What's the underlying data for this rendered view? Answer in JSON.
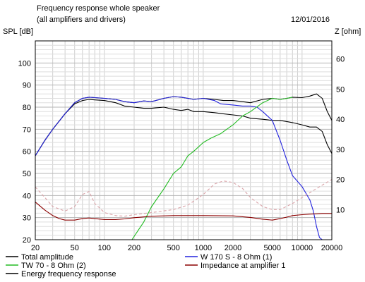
{
  "header": {
    "title": "Frequency response whole speaker",
    "subtitle": "(all amplifiers and drivers)",
    "date": "12/01/2016"
  },
  "chart_data": {
    "type": "line",
    "title": "Frequency response whole speaker",
    "subtitle": "(all amplifiers and drivers)",
    "ylabel_left": "SPL [dB]",
    "ylabel_right": "Z [ohm]",
    "x_scale": "log",
    "xlim": [
      20,
      20000
    ],
    "ylim_left": [
      20,
      110
    ],
    "ylim_right": [
      0,
      66
    ],
    "grid": true,
    "legend_position": "bottom",
    "x_ticks": [
      20,
      50,
      100,
      200,
      500,
      1000,
      2000,
      5000,
      10000,
      20000
    ],
    "x_tick_labels": [
      "20",
      "50",
      "100",
      "200",
      "500",
      "1000",
      "2000",
      "5000",
      "10000",
      "20000"
    ],
    "y_ticks_left": [
      20,
      30,
      40,
      50,
      60,
      70,
      80,
      90,
      100
    ],
    "y_tick_labels_left": [
      "20",
      "30",
      "40",
      "50",
      "60",
      "70",
      "80",
      "90",
      "100"
    ],
    "y_ticks_right": [
      10,
      20,
      30,
      40,
      50,
      60
    ],
    "y_tick_labels_right": [
      "10",
      "20",
      "30",
      "40",
      "50",
      "60"
    ],
    "series": [
      {
        "name": "Total amplitude",
        "axis": "left",
        "color": "#000000",
        "dash": "",
        "x": [
          20,
          25,
          30,
          40,
          50,
          60,
          70,
          80,
          100,
          130,
          160,
          200,
          250,
          300,
          400,
          500,
          600,
          700,
          800,
          1000,
          1300,
          1600,
          2000,
          2500,
          3000,
          4000,
          5000,
          6000,
          7000,
          8000,
          10000,
          12000,
          14000,
          16000,
          18000,
          20000
        ],
        "y": [
          58,
          65,
          70,
          77,
          82,
          84,
          84.5,
          84.3,
          84,
          83.5,
          82.5,
          82,
          82.8,
          82.5,
          84,
          84.8,
          84.5,
          84,
          83.5,
          84,
          83.5,
          83,
          83,
          82.5,
          82,
          83.5,
          84,
          83.5,
          84,
          84.5,
          84.3,
          85,
          86,
          84,
          78,
          74
        ]
      },
      {
        "name": "Energy frequency response",
        "axis": "left",
        "color": "#000000",
        "dash": "",
        "x": [
          20,
          25,
          30,
          40,
          50,
          60,
          70,
          80,
          100,
          130,
          160,
          200,
          250,
          300,
          400,
          500,
          600,
          700,
          800,
          1000,
          1300,
          1600,
          2000,
          2500,
          3000,
          4000,
          5000,
          6000,
          7000,
          8000,
          10000,
          12000,
          14000,
          16000,
          18000,
          20000
        ],
        "y": [
          58,
          65,
          70,
          77,
          81.5,
          83,
          83.5,
          83.3,
          83,
          82,
          80.5,
          80,
          79.5,
          79.5,
          80,
          79,
          78.5,
          79,
          78,
          78,
          77.5,
          77,
          76.5,
          76,
          75,
          74.5,
          74,
          74,
          73.5,
          73,
          72,
          71,
          71,
          69,
          63,
          59
        ]
      },
      {
        "name": "W 170 S - 8 Ohm (1)",
        "axis": "left",
        "color": "#2222dd",
        "dash": "",
        "x": [
          20,
          25,
          30,
          40,
          50,
          60,
          70,
          80,
          100,
          130,
          160,
          200,
          250,
          300,
          400,
          500,
          600,
          700,
          800,
          1000,
          1300,
          1500,
          2000,
          2500,
          3000,
          3500,
          4000,
          5000,
          6000,
          7000,
          8000,
          10000,
          12000,
          13000,
          14000,
          15000,
          16000
        ],
        "y": [
          58,
          65,
          70,
          77,
          82,
          84,
          84.5,
          84.3,
          84,
          83.5,
          82.5,
          82,
          82.8,
          82.5,
          84,
          84.8,
          84.5,
          84,
          83.5,
          84,
          83,
          81.5,
          81,
          80.5,
          80.5,
          80,
          78,
          74,
          65,
          56,
          49,
          44,
          38,
          33,
          26,
          21,
          20
        ]
      },
      {
        "name": "TW 70 - 8 Ohm (2)",
        "axis": "left",
        "color": "#22bb22",
        "dash": "",
        "x": [
          190,
          200,
          250,
          300,
          400,
          500,
          600,
          700,
          800,
          1000,
          1200,
          1500,
          2000,
          2500,
          3000,
          4000,
          5000,
          6000,
          7000,
          8000
        ],
        "y": [
          20,
          21.5,
          28,
          35,
          43,
          50,
          53,
          58,
          60,
          64,
          66,
          68,
          72,
          76,
          78,
          82,
          84,
          83.5,
          84,
          84.5
        ]
      },
      {
        "name": "Impedance at amplifier 1",
        "axis": "right",
        "color": "#8b0000",
        "dash": "",
        "x": [
          20,
          25,
          30,
          35,
          40,
          50,
          60,
          70,
          80,
          100,
          130,
          160,
          200,
          300,
          500,
          1000,
          2000,
          3000,
          4000,
          5000,
          6000,
          7000,
          8000,
          10000,
          12000,
          14000,
          16000,
          20000
        ],
        "y": [
          12.5,
          9.8,
          8,
          7,
          6.5,
          6.5,
          7,
          7.2,
          7,
          6.7,
          6.7,
          6.9,
          7.3,
          7.8,
          8,
          8,
          7.9,
          7.4,
          6.8,
          6.5,
          7,
          7.5,
          8,
          8.3,
          8.5,
          8.6,
          8.7,
          8.7
        ]
      },
      {
        "name": "",
        "axis": "right",
        "color": "#d9a3a8",
        "dash": "4,3",
        "x": [
          20,
          25,
          30,
          40,
          50,
          60,
          70,
          80,
          100,
          130,
          160,
          200,
          300,
          500,
          700,
          1000,
          1300,
          1600,
          2000,
          2500,
          3000,
          4000,
          5000,
          6000,
          8000,
          10000,
          14000,
          20000
        ],
        "y": [
          17.5,
          14,
          11,
          9.5,
          11,
          15,
          16,
          12,
          9,
          8,
          7.8,
          8.3,
          9,
          10,
          11.5,
          15,
          18.5,
          19.5,
          19,
          17,
          14,
          11,
          10,
          10,
          12,
          14,
          17,
          20
        ]
      }
    ]
  },
  "legend": {
    "items": [
      {
        "label": "Total amplitude",
        "color": "#000000"
      },
      {
        "label": "W 170 S - 8 Ohm (1)",
        "color": "#2222dd"
      },
      {
        "label": "TW 70 - 8 Ohm (2)",
        "color": "#22bb22"
      },
      {
        "label": "Impedance at amplifier 1",
        "color": "#8b0000"
      },
      {
        "label": "Energy frequency response",
        "color": "#000000"
      }
    ]
  }
}
